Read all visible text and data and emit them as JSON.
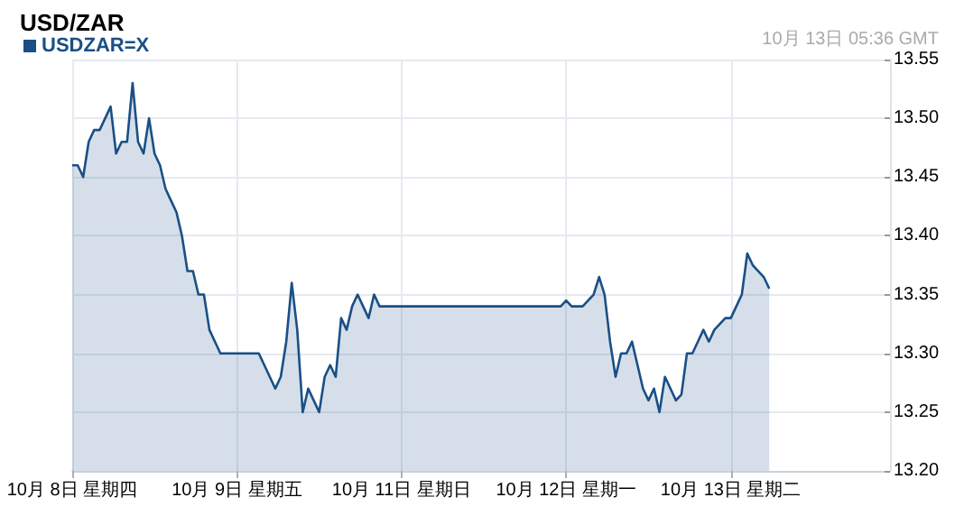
{
  "chart_data": {
    "type": "area",
    "title": "USD/ZAR",
    "annotations": [
      "10月 13日 05:36 GMT"
    ],
    "categories": [
      "10月 8日 星期四",
      null,
      null,
      null,
      null,
      null,
      null,
      null,
      null,
      null,
      null,
      null,
      null,
      null,
      null,
      null,
      null,
      null,
      null,
      null,
      null,
      null,
      null,
      null,
      null,
      null,
      null,
      null,
      null,
      null,
      "10月 9日 星期五",
      null,
      null,
      null,
      null,
      null,
      null,
      null,
      null,
      null,
      null,
      null,
      null,
      null,
      null,
      null,
      null,
      null,
      null,
      null,
      null,
      null,
      null,
      null,
      null,
      null,
      null,
      null,
      null,
      null,
      "10月 11日 星期日",
      null,
      null,
      null,
      null,
      null,
      null,
      null,
      null,
      null,
      null,
      null,
      null,
      null,
      null,
      null,
      null,
      null,
      null,
      null,
      null,
      null,
      null,
      null,
      null,
      null,
      null,
      null,
      null,
      null,
      "10月 12日 星期一",
      null,
      null,
      null,
      null,
      null,
      null,
      null,
      null,
      null,
      null,
      null,
      null,
      null,
      null,
      null,
      null,
      null,
      null,
      null,
      null,
      null,
      null,
      null,
      null,
      null,
      null,
      null,
      null,
      null,
      "10月 13日 星期二",
      null,
      null,
      null,
      null,
      null,
      null,
      null,
      null,
      null,
      null,
      null,
      null,
      null,
      null,
      null,
      null,
      null,
      null,
      null,
      null,
      null,
      null,
      null,
      null,
      null,
      null,
      null,
      null,
      null
    ],
    "series": [
      {
        "name": "USDZAR=X",
        "color": "#1a4f86",
        "values": [
          13.46,
          13.46,
          13.45,
          13.48,
          13.49,
          13.49,
          13.5,
          13.51,
          13.47,
          13.48,
          13.48,
          13.53,
          13.48,
          13.47,
          13.5,
          13.47,
          13.46,
          13.44,
          13.43,
          13.42,
          13.4,
          13.37,
          13.37,
          13.35,
          13.35,
          13.32,
          13.31,
          13.3,
          13.3,
          13.3,
          13.3,
          13.3,
          13.3,
          13.3,
          13.3,
          13.29,
          13.28,
          13.27,
          13.28,
          13.31,
          13.36,
          13.32,
          13.25,
          13.27,
          13.26,
          13.25,
          13.28,
          13.29,
          13.28,
          13.33,
          13.32,
          13.34,
          13.35,
          13.34,
          13.33,
          13.35,
          13.34,
          13.34,
          13.34,
          13.34,
          13.34,
          13.34,
          13.34,
          13.34,
          13.34,
          13.34,
          13.34,
          13.34,
          13.34,
          13.34,
          13.34,
          13.34,
          13.34,
          13.34,
          13.34,
          13.34,
          13.34,
          13.34,
          13.34,
          13.34,
          13.34,
          13.34,
          13.34,
          13.34,
          13.34,
          13.34,
          13.34,
          13.34,
          13.34,
          13.34,
          13.345,
          13.34,
          13.34,
          13.34,
          13.345,
          13.35,
          13.365,
          13.35,
          13.31,
          13.28,
          13.3,
          13.3,
          13.31,
          13.29,
          13.27,
          13.26,
          13.27,
          13.25,
          13.28,
          13.27,
          13.26,
          13.265,
          13.3,
          13.3,
          13.31,
          13.32,
          13.31,
          13.32,
          13.325,
          13.33,
          13.33,
          13.34,
          13.35,
          13.385,
          13.375,
          13.37,
          13.365,
          13.355,
          null,
          null,
          null,
          null,
          null,
          null,
          null,
          null,
          null,
          null,
          null,
          null,
          null,
          null,
          null,
          null,
          null,
          null,
          null,
          null,
          null,
          null
        ]
      }
    ],
    "ylim": [
      13.2,
      13.55
    ],
    "yticks": [
      {
        "value": 13.2,
        "label": "13.20"
      },
      {
        "value": 13.25,
        "label": "13.25"
      },
      {
        "value": 13.3,
        "label": "13.30"
      },
      {
        "value": 13.35,
        "label": "13.35"
      },
      {
        "value": 13.4,
        "label": "13.40"
      },
      {
        "value": 13.45,
        "label": "13.45"
      },
      {
        "value": 13.5,
        "label": "13.50"
      },
      {
        "value": 13.55,
        "label": "13.55"
      }
    ],
    "grid": true,
    "legend": "top left",
    "marker": "none"
  }
}
